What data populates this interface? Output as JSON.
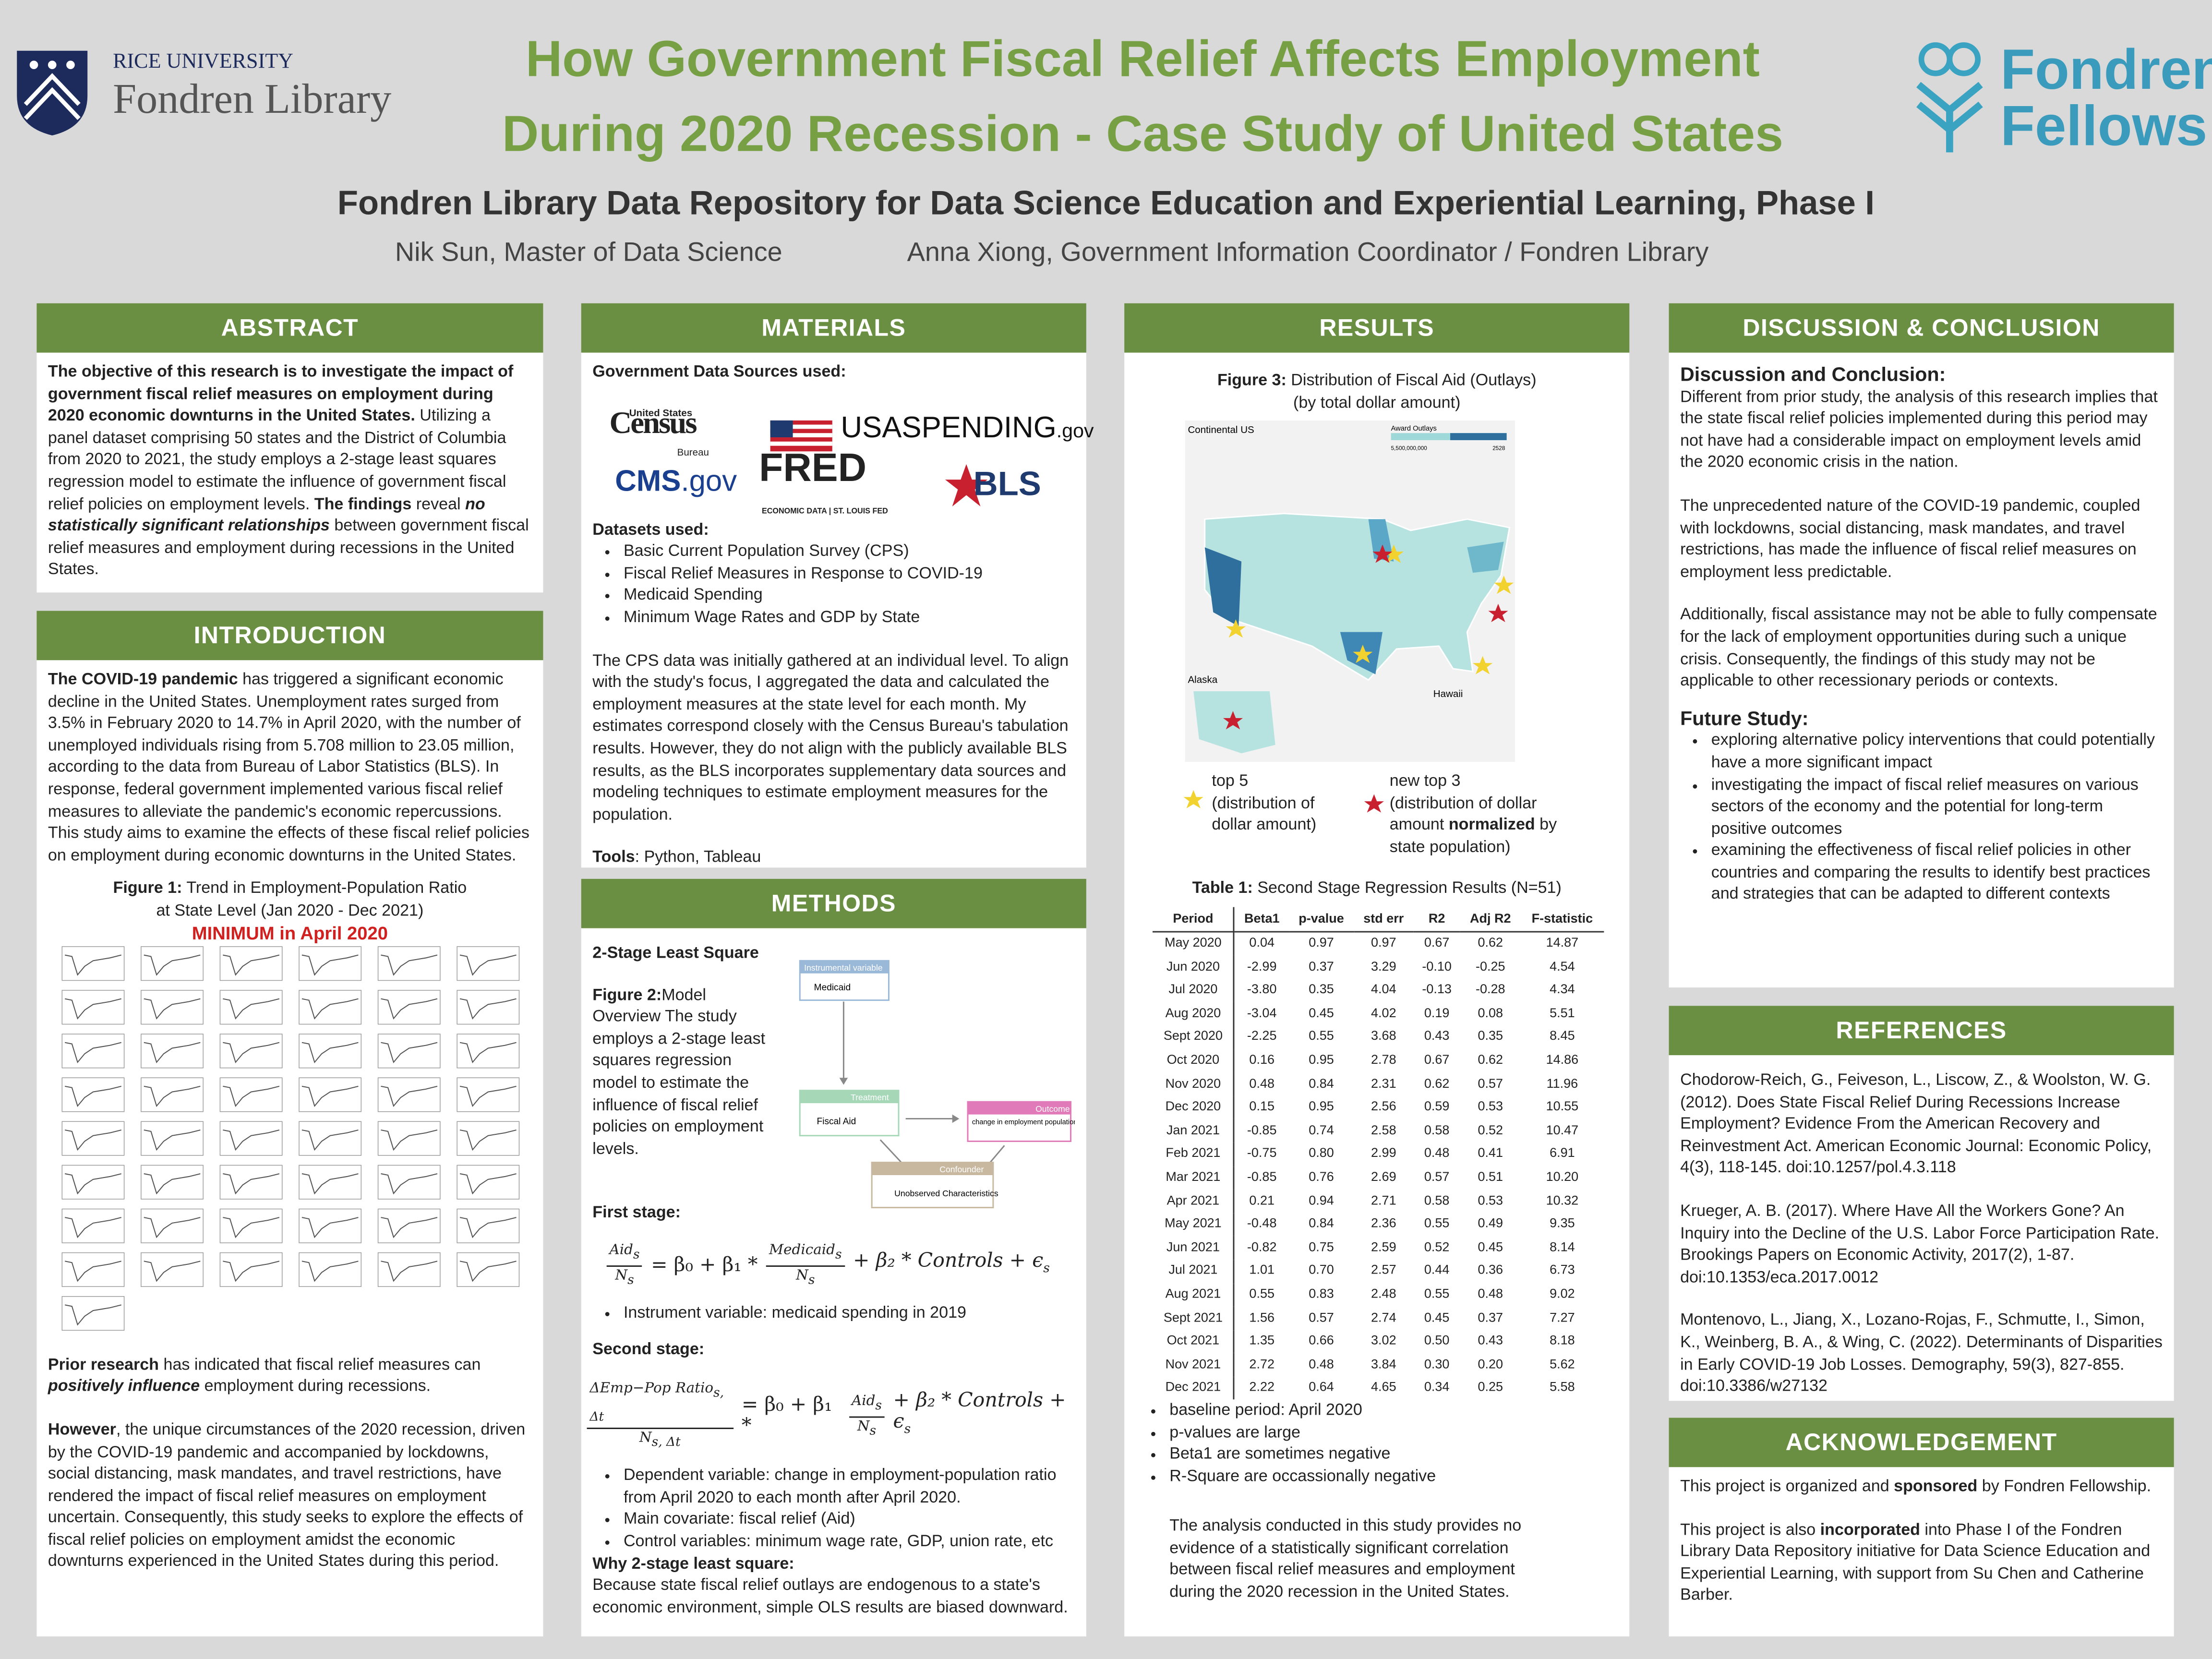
{
  "header": {
    "rice_line1": "RICE UNIVERSITY",
    "rice_line2": "Fondren Library",
    "title_line1": "How Government Fiscal Relief Affects Employment",
    "title_line2": "During 2020 Recession - Case Study of United States",
    "subtitle": "Fondren Library Data Repository for Data Science Education and Experiential Learning, Phase I",
    "author1": "Nik Sun, Master of Data Science",
    "author2": "Anna Xiong, Government Information Coordinator / Fondren Library",
    "fellows_line1": "Fondren",
    "fellows_line2": "Fellows"
  },
  "abstract": {
    "heading": "ABSTRACT",
    "runs": [
      "The objective of this research is to investigate the impact of government fiscal relief measures on employment during 2020 economic downturns in the United States.",
      "Utilizing a panel dataset comprising 50 states and the District of Columbia from 2020 to 2021, the study employs a 2-stage least squares regression model to estimate the influence of government fiscal relief policies on employment levels. ",
      "The findings",
      " reveal ",
      "no statistically significant relationships",
      " between government fiscal relief measures and employment during recessions in the United States."
    ]
  },
  "introduction": {
    "heading": "INTRODUCTION",
    "p1": [
      "The COVID-19 pandemic",
      " has triggered a significant economic decline in the United States. Unemployment rates surged from 3.5% in February 2020 to 14.7% in April 2020, with the number of unemployed individuals rising from 5.708 million to 23.05 million, according to the data from Bureau of Labor Statistics (BLS). In response, federal government implemented various fiscal relief measures to alleviate the pandemic's economic repercussions. This study aims to examine the effects of these fiscal relief policies on employment during economic downturns in the United States."
    ],
    "figure_label": "Figure 1:",
    "figure_caption": " Trend in Employment-Population Ratio at State Level (Jan 2020 - Dec 2021)",
    "figure_highlight": "MINIMUM in April 2020",
    "p2": [
      "Prior research",
      " has indicated that fiscal relief measures can ",
      "positively influence",
      " employment during recessions."
    ],
    "p3": [
      "However",
      ", the unique circumstances of the 2020 recession, driven by the COVID-19 pandemic and accompanied by lockdowns, social distancing, mask mandates, and travel restrictions, have rendered the impact of fiscal relief measures on employment uncertain. Consequently, this study seeks to explore the effects of fiscal relief policies on employment amidst the economic downturns experienced in the United States during this period."
    ]
  },
  "materials": {
    "heading": "MATERIALS",
    "sources_label": "Government Data Sources used:",
    "logos": {
      "census_top": "United States",
      "census": "Census",
      "census_bottom": "Bureau",
      "usaspending": "USASPENDING",
      "usaspending_tld": ".gov",
      "cms": "CMS",
      "cms_tld": ".gov",
      "fred": "FRED",
      "fred_sub": "ECONOMIC DATA | ST. LOUIS FED",
      "bls": "BLS"
    },
    "datasets_label": "Datasets used:",
    "datasets": [
      "Basic Current Population Survey (CPS)",
      "Fiscal Relief Measures in Response to COVID-19",
      "Medicaid Spending",
      "Minimum Wage Rates and GDP by State"
    ],
    "paragraph": "The CPS data was initially gathered at an individual level. To align with the study's focus, I aggregated the data and calculated the employment measures at the state level for each month. My estimates correspond closely with the Census Bureau's tabulation results. However, they do not align with the publicly available BLS results, as the BLS incorporates supplementary data sources and modeling techniques to estimate employment measures for the population.",
    "tools_label": "Tools",
    "tools": ": Python, Tableau"
  },
  "methods": {
    "heading": "METHODS",
    "subheading": "2-Stage Least Square",
    "figure_label": "Figure 2:",
    "figure_text": "Model Overview The study employs a 2-stage least squares regression model to estimate the influence of fiscal relief policies on employment levels.",
    "diagram": {
      "iv_tag": "Instrumental variable",
      "iv": "Medicaid",
      "treat_tag": "Treatment",
      "treat": "Fiscal Aid",
      "out_tag": "Outcome",
      "out": "change in employment population ratio",
      "conf_tag": "Confounder",
      "conf": "Unobserved Characteristics"
    },
    "first_label": "First stage:",
    "eq1": {
      "num": "Aid",
      "num_sub": "s",
      "den": "N",
      "den_sub": "s",
      "mid": "= β₀ + β₁ *",
      "fnum": "Medicaid",
      "fnum_sub": "s",
      "fden": "N",
      "fden_sub": "s",
      "tail": "+ β₂ * Controls + ϵ",
      "tail_sub": "s"
    },
    "first_bullets": [
      "Instrument variable: medicaid spending in 2019"
    ],
    "second_label": "Second stage:",
    "eq2": {
      "num": "ΔEmp−Pop Ratio",
      "num_sub": "s, Δt",
      "den": "N",
      "den_sub": "s, Δt",
      "mid": "= β₀ + β₁ *",
      "fnum": "Aid",
      "fnum_sub": "s",
      "fden": "N",
      "fden_sub": "s",
      "tail": "+ β₂ * Controls + ϵ",
      "tail_sub": "s"
    },
    "second_bullets": [
      "Dependent variable: change in employment-population ratio from April 2020 to each month after April 2020.",
      "Main covariate: fiscal relief (Aid)",
      "Control variables: minimum wage rate, GDP, union rate, etc"
    ],
    "why_label": "Why 2-stage least square:",
    "why": "Because state fiscal relief outlays are endogenous to a state's economic environment, simple OLS results are biased downward."
  },
  "results": {
    "heading": "RESULTS",
    "figure_label": "Figure 3:",
    "figure_caption": " Distribution of Fiscal Aid (Outlays)",
    "figure_caption2": "(by total dollar amount)",
    "map": {
      "continental": "Continental US",
      "alaska": "Alaska",
      "hawaii": "Hawaii",
      "legend_title": "Award Outlays",
      "legend_min": "5,500,000,000",
      "legend_max": "2528"
    },
    "legend_top5": "top 5",
    "legend_top5_note": "(distribution of dollar amount)",
    "legend_new3": "new top 3",
    "legend_new3_a": "(distribution of dollar amount ",
    "legend_new3_b": "normalized",
    "legend_new3_c": " by state population)",
    "table_label": "Table 1:",
    "table_caption": " Second Stage Regression Results (N=51)",
    "table": {
      "columns": [
        "Period",
        "Beta1",
        "p-value",
        "std err",
        "R2",
        "Adj R2",
        "F-statistic"
      ],
      "rows": [
        [
          "May 2020",
          "0.04",
          "0.97",
          "0.97",
          "0.67",
          "0.62",
          "14.87"
        ],
        [
          "Jun 2020",
          "-2.99",
          "0.37",
          "3.29",
          "-0.10",
          "-0.25",
          "4.54"
        ],
        [
          "Jul 2020",
          "-3.80",
          "0.35",
          "4.04",
          "-0.13",
          "-0.28",
          "4.34"
        ],
        [
          "Aug 2020",
          "-3.04",
          "0.45",
          "4.02",
          "0.19",
          "0.08",
          "5.51"
        ],
        [
          "Sept 2020",
          "-2.25",
          "0.55",
          "3.68",
          "0.43",
          "0.35",
          "8.45"
        ],
        [
          "Oct 2020",
          "0.16",
          "0.95",
          "2.78",
          "0.67",
          "0.62",
          "14.86"
        ],
        [
          "Nov 2020",
          "0.48",
          "0.84",
          "2.31",
          "0.62",
          "0.57",
          "11.96"
        ],
        [
          "Dec 2020",
          "0.15",
          "0.95",
          "2.56",
          "0.59",
          "0.53",
          "10.55"
        ],
        [
          "Jan 2021",
          "-0.85",
          "0.74",
          "2.58",
          "0.58",
          "0.52",
          "10.47"
        ],
        [
          "Feb 2021",
          "-0.75",
          "0.80",
          "2.99",
          "0.48",
          "0.41",
          "6.91"
        ],
        [
          "Mar 2021",
          "-0.85",
          "0.76",
          "2.69",
          "0.57",
          "0.51",
          "10.20"
        ],
        [
          "Apr 2021",
          "0.21",
          "0.94",
          "2.71",
          "0.58",
          "0.53",
          "10.32"
        ],
        [
          "May 2021",
          "-0.48",
          "0.84",
          "2.36",
          "0.55",
          "0.49",
          "9.35"
        ],
        [
          "Jun 2021",
          "-0.82",
          "0.75",
          "2.59",
          "0.52",
          "0.45",
          "8.14"
        ],
        [
          "Jul 2021",
          "1.01",
          "0.70",
          "2.57",
          "0.44",
          "0.36",
          "6.73"
        ],
        [
          "Aug 2021",
          "0.55",
          "0.83",
          "2.48",
          "0.55",
          "0.48",
          "9.02"
        ],
        [
          "Sept 2021",
          "1.56",
          "0.57",
          "2.74",
          "0.45",
          "0.37",
          "7.27"
        ],
        [
          "Oct 2021",
          "1.35",
          "0.66",
          "3.02",
          "0.50",
          "0.43",
          "8.18"
        ],
        [
          "Nov 2021",
          "2.72",
          "0.48",
          "3.84",
          "0.30",
          "0.20",
          "5.62"
        ],
        [
          "Dec 2021",
          "2.22",
          "0.64",
          "4.65",
          "0.34",
          "0.25",
          "5.58"
        ]
      ]
    },
    "bullets": [
      "baseline period: April 2020",
      "p-values are large",
      "Beta1 are sometimes negative",
      "R-Square are occassionally negative"
    ],
    "paragraph": "The analysis conducted in this study provides no evidence of a statistically significant correlation between fiscal relief measures and employment during the 2020 recession in the United States."
  },
  "discussion": {
    "heading": "DISCUSSION & CONCLUSION",
    "subheading": "Discussion and Conclusion:",
    "paragraphs": [
      "Different from prior study, the analysis of this research implies that the state fiscal relief policies implemented during this period may not have had a considerable impact on employment levels amid the 2020 economic crisis in the nation.",
      "The unprecedented nature of the COVID-19 pandemic, coupled with lockdowns, social distancing, mask mandates, and travel restrictions, has made the influence of fiscal relief measures on employment less predictable.",
      "Additionally, fiscal assistance may not be able to fully compensate for the lack of employment opportunities during such a unique crisis. Consequently, the findings of this study may not be applicable to other recessionary periods or contexts."
    ],
    "future_label": "Future Study:",
    "future": [
      "exploring alternative policy interventions that could potentially have a more significant impact",
      "investigating the impact of fiscal relief measures on various sectors of the economy and the potential for long-term positive outcomes",
      "examining the effectiveness of fiscal relief policies in other countries and comparing the results to identify best practices and strategies that can be adapted to different contexts"
    ]
  },
  "references": {
    "heading": "REFERENCES",
    "items": [
      "Chodorow-Reich, G., Feiveson, L., Liscow, Z., & Woolston, W. G. (2012). Does State Fiscal Relief During Recessions Increase Employment? Evidence From the American Recovery and Reinvestment Act. American Economic Journal: Economic Policy, 4(3), 118-145. doi:10.1257/pol.4.3.118",
      "Krueger, A. B. (2017). Where Have All the Workers Gone? An Inquiry into the Decline of the U.S. Labor Force Participation Rate. Brookings Papers on Economic Activity, 2017(2), 1-87. doi:10.1353/eca.2017.0012",
      "Montenovo, L., Jiang, X., Lozano-Rojas, F., Schmutte, I., Simon, K., Weinberg, B. A., & Wing, C. (2022). Determinants of Disparities in Early COVID-19 Job Losses. Demography, 59(3), 827-855. doi:10.3386/w27132"
    ]
  },
  "acknowledgement": {
    "heading": "ACKNOWLEDGEMENT",
    "p1": [
      "This project is organized and ",
      "sponsored",
      " by Fondren Fellowship."
    ],
    "p2": [
      "This project is also ",
      "incorporated",
      " into Phase I of the Fondren Library Data Repository initiative for Data Science Education and Experiential Learning, with support from Su Chen and Catherine Barber."
    ]
  }
}
